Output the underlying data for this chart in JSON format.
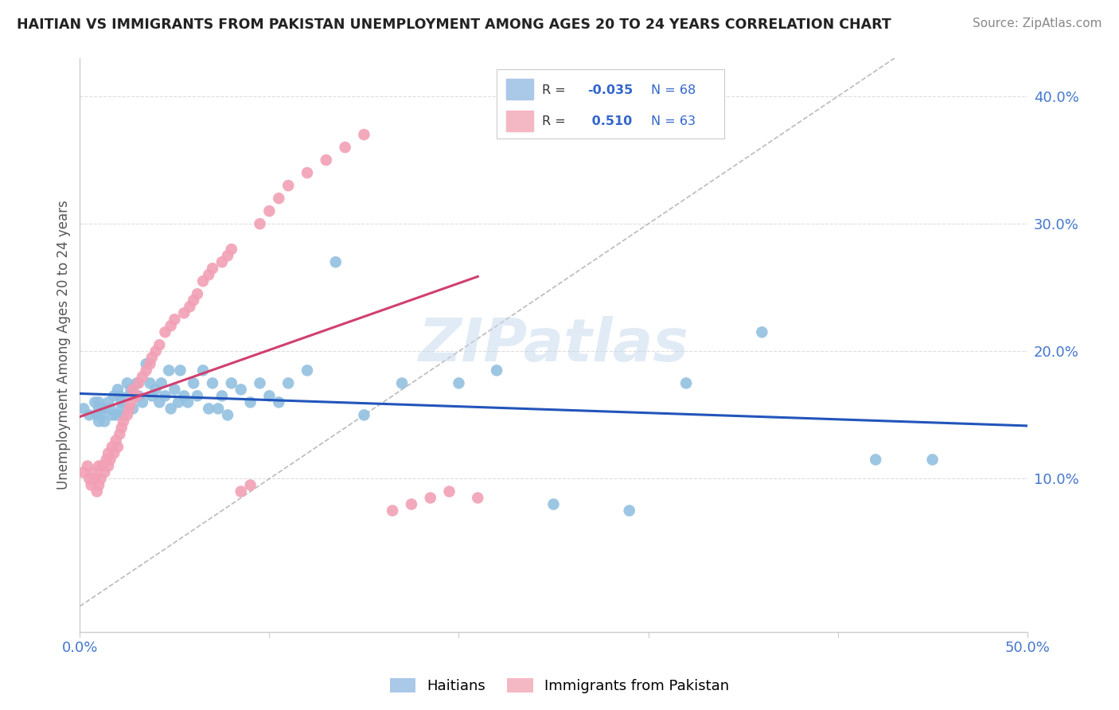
{
  "title": "HAITIAN VS IMMIGRANTS FROM PAKISTAN UNEMPLOYMENT AMONG AGES 20 TO 24 YEARS CORRELATION CHART",
  "source": "Source: ZipAtlas.com",
  "ylabel": "Unemployment Among Ages 20 to 24 years",
  "xlim": [
    0.0,
    0.5
  ],
  "ylim": [
    -0.02,
    0.43
  ],
  "yticks": [
    0.1,
    0.2,
    0.3,
    0.4
  ],
  "ytick_labels": [
    "10.0%",
    "20.0%",
    "30.0%",
    "40.0%"
  ],
  "xticks": [
    0.0,
    0.1,
    0.2,
    0.3,
    0.4,
    0.5
  ],
  "xtick_labels": [
    "0.0%",
    "",
    "",
    "",
    "",
    "50.0%"
  ],
  "haitian_R": -0.035,
  "haitian_N": 68,
  "pakistan_R": 0.51,
  "pakistan_N": 63,
  "haitian_color": "#92C0E0",
  "pakistan_color": "#F2A0B5",
  "haitian_line_color": "#2255BB",
  "pakistan_line_color": "#D04070",
  "diagonal_color": "#bbbbbb",
  "background_color": "#ffffff",
  "grid_color": "#dddddd",
  "watermark": "ZIPatlas",
  "haitian_x": [
    0.002,
    0.005,
    0.008,
    0.009,
    0.01,
    0.01,
    0.01,
    0.011,
    0.012,
    0.013,
    0.015,
    0.016,
    0.017,
    0.018,
    0.019,
    0.02,
    0.021,
    0.022,
    0.022,
    0.023,
    0.025,
    0.026,
    0.027,
    0.028,
    0.03,
    0.031,
    0.033,
    0.035,
    0.037,
    0.038,
    0.04,
    0.042,
    0.043,
    0.045,
    0.047,
    0.048,
    0.05,
    0.052,
    0.053,
    0.055,
    0.057,
    0.06,
    0.062,
    0.065,
    0.068,
    0.07,
    0.073,
    0.075,
    0.078,
    0.08,
    0.085,
    0.09,
    0.095,
    0.1,
    0.105,
    0.11,
    0.12,
    0.135,
    0.15,
    0.17,
    0.2,
    0.22,
    0.25,
    0.29,
    0.32,
    0.36,
    0.42,
    0.45
  ],
  "haitian_y": [
    0.155,
    0.15,
    0.16,
    0.15,
    0.155,
    0.145,
    0.16,
    0.15,
    0.155,
    0.145,
    0.16,
    0.155,
    0.15,
    0.165,
    0.15,
    0.17,
    0.165,
    0.16,
    0.155,
    0.15,
    0.175,
    0.165,
    0.17,
    0.155,
    0.175,
    0.165,
    0.16,
    0.19,
    0.175,
    0.165,
    0.17,
    0.16,
    0.175,
    0.165,
    0.185,
    0.155,
    0.17,
    0.16,
    0.185,
    0.165,
    0.16,
    0.175,
    0.165,
    0.185,
    0.155,
    0.175,
    0.155,
    0.165,
    0.15,
    0.175,
    0.17,
    0.16,
    0.175,
    0.165,
    0.16,
    0.175,
    0.185,
    0.27,
    0.15,
    0.175,
    0.175,
    0.185,
    0.08,
    0.075,
    0.175,
    0.215,
    0.115,
    0.115
  ],
  "pakistan_x": [
    0.002,
    0.004,
    0.005,
    0.006,
    0.007,
    0.008,
    0.009,
    0.01,
    0.01,
    0.011,
    0.012,
    0.013,
    0.014,
    0.015,
    0.015,
    0.016,
    0.017,
    0.018,
    0.019,
    0.02,
    0.021,
    0.022,
    0.023,
    0.025,
    0.026,
    0.027,
    0.028,
    0.03,
    0.031,
    0.033,
    0.035,
    0.037,
    0.038,
    0.04,
    0.042,
    0.045,
    0.048,
    0.05,
    0.055,
    0.058,
    0.06,
    0.062,
    0.065,
    0.068,
    0.07,
    0.075,
    0.078,
    0.08,
    0.085,
    0.09,
    0.095,
    0.1,
    0.105,
    0.11,
    0.12,
    0.13,
    0.14,
    0.15,
    0.165,
    0.175,
    0.185,
    0.195,
    0.21
  ],
  "pakistan_y": [
    0.105,
    0.11,
    0.1,
    0.095,
    0.105,
    0.1,
    0.09,
    0.095,
    0.11,
    0.1,
    0.11,
    0.105,
    0.115,
    0.11,
    0.12,
    0.115,
    0.125,
    0.12,
    0.13,
    0.125,
    0.135,
    0.14,
    0.145,
    0.15,
    0.155,
    0.16,
    0.17,
    0.165,
    0.175,
    0.18,
    0.185,
    0.19,
    0.195,
    0.2,
    0.205,
    0.215,
    0.22,
    0.225,
    0.23,
    0.235,
    0.24,
    0.245,
    0.255,
    0.26,
    0.265,
    0.27,
    0.275,
    0.28,
    0.09,
    0.095,
    0.3,
    0.31,
    0.32,
    0.33,
    0.34,
    0.35,
    0.36,
    0.37,
    0.075,
    0.08,
    0.085,
    0.09,
    0.085
  ]
}
